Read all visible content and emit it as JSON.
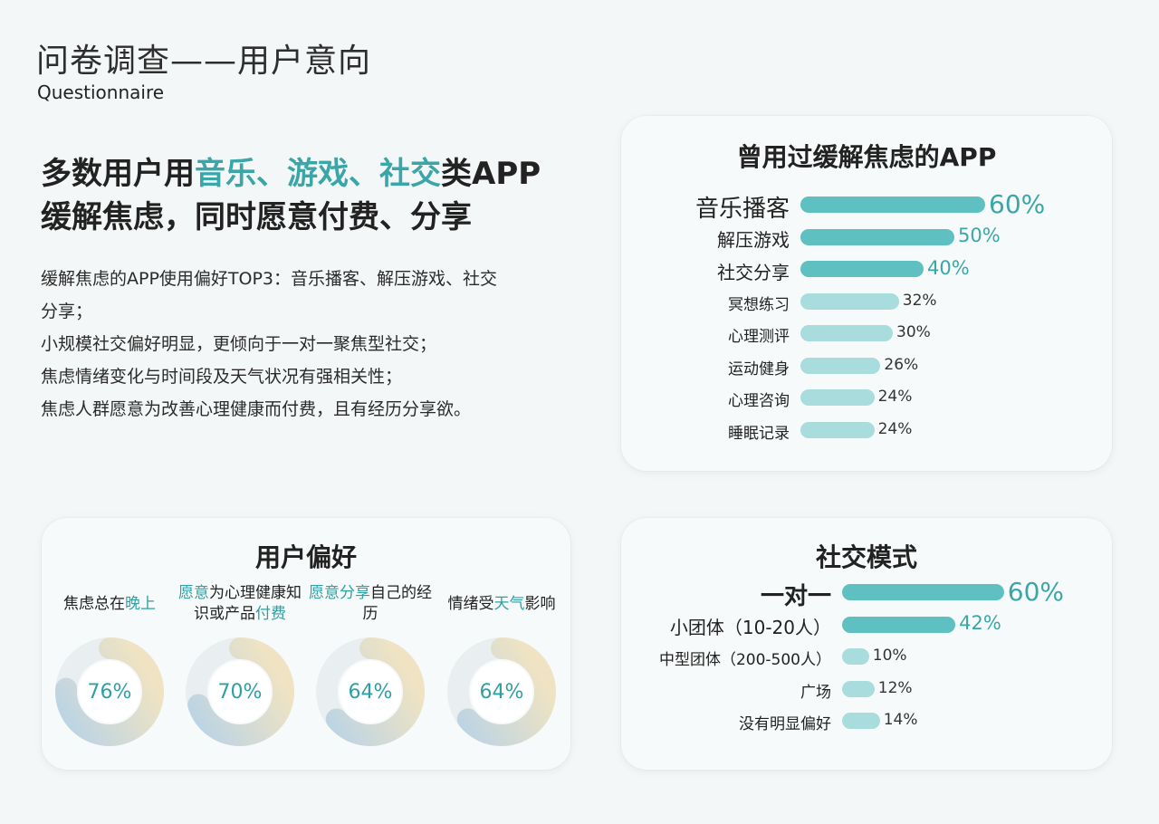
{
  "header": {
    "title": "问卷调查——用户意向",
    "subtitle": "Questionnaire"
  },
  "headline": {
    "line1_a": "多数用户用",
    "line1_b": "音乐、游戏、社交",
    "line1_c": "类APP",
    "line2": "缓解焦虑，同时愿意付费、分享"
  },
  "description": {
    "lines": [
      "缓解焦虑的APP使用偏好TOP3：音乐播客、解压游戏、社交",
      "分享；",
      "小规模社交偏好明显，更倾向于一对一聚焦型社交；",
      "焦虑情绪变化与时间段及天气状况有强相关性；",
      "焦虑人群愿意为改善心理健康而付费，且有经历分享欲。"
    ]
  },
  "colors": {
    "accent": "#3aa6a8",
    "bar_strong": "#5fc0c2",
    "bar_light": "#a9dcdd",
    "ring_blue": "#b9d3e6",
    "ring_yellow": "#efe3c3"
  },
  "chart_data": [
    {
      "type": "bar",
      "title": "曾用过缓解焦虑的APP",
      "categories": [
        "音乐播客",
        "解压游戏",
        "社交分享",
        "冥想练习",
        "心理测评",
        "运动健身",
        "心理咨询",
        "睡眠记录"
      ],
      "values": [
        60,
        50,
        40,
        32,
        30,
        26,
        24,
        24
      ],
      "value_labels": [
        "60%",
        "50%",
        "40%",
        "32%",
        "30%",
        "26%",
        "24%",
        "24%"
      ],
      "unit": "%",
      "orientation": "horizontal"
    },
    {
      "type": "bar",
      "title": "社交模式",
      "categories": [
        "一对一",
        "小团体（10-20人）",
        "中型团体（200-500人）",
        "广场",
        "没有明显偏好"
      ],
      "values": [
        60,
        42,
        10,
        12,
        14
      ],
      "value_labels": [
        "60%",
        "42%",
        "10%",
        "12%",
        "14%"
      ],
      "unit": "%",
      "orientation": "horizontal"
    },
    {
      "type": "pie",
      "title": "用户偏好",
      "items": [
        {
          "label_parts": [
            {
              "t": "焦虑总在",
              "hl": false
            },
            {
              "t": "晚上",
              "hl": true
            }
          ],
          "value": 76,
          "value_label": "76%"
        },
        {
          "label_parts": [
            {
              "t": "愿意",
              "hl": true
            },
            {
              "t": "为心理健康知识或产品",
              "hl": false
            },
            {
              "t": "付费",
              "hl": true
            }
          ],
          "value": 70,
          "value_label": "70%"
        },
        {
          "label_parts": [
            {
              "t": "愿意分享",
              "hl": true
            },
            {
              "t": "自己的经历",
              "hl": false
            }
          ],
          "value": 64,
          "value_label": "64%"
        },
        {
          "label_parts": [
            {
              "t": "情绪受",
              "hl": false
            },
            {
              "t": "天气",
              "hl": true
            },
            {
              "t": "影响",
              "hl": false
            }
          ],
          "value": 64,
          "value_label": "64%"
        }
      ]
    }
  ]
}
